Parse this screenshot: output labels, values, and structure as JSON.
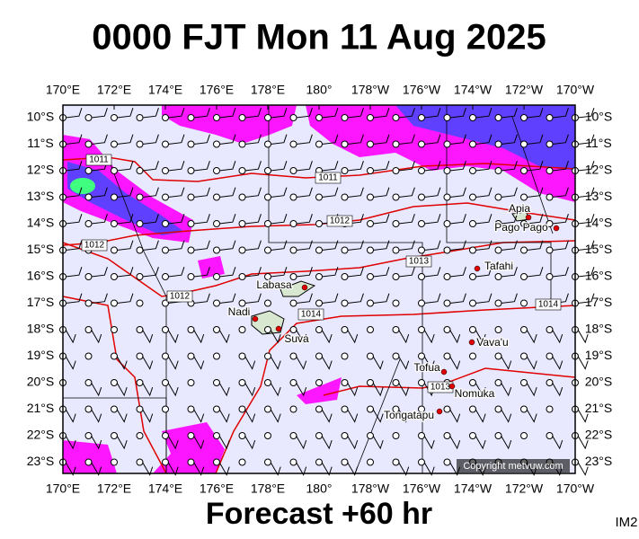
{
  "header": {
    "title": "0000 FJT Mon 11 Aug 2025"
  },
  "map": {
    "lon_labels": [
      "170°E",
      "172°E",
      "174°E",
      "176°E",
      "178°E",
      "180°",
      "178°W",
      "176°W",
      "174°W",
      "172°W",
      "170°W"
    ],
    "lat_labels": [
      "10°S",
      "11°S",
      "12°S",
      "13°S",
      "14°S",
      "15°S",
      "16°S",
      "17°S",
      "18°S",
      "19°S",
      "20°S",
      "21°S",
      "22°S",
      "23°S"
    ],
    "isobar_labels": [
      "1011",
      "1011",
      "1012",
      "1012",
      "1013",
      "1012",
      "1014",
      "1014",
      "1013"
    ],
    "places": [
      "Apia",
      "Pago Pago",
      "Tafahi",
      "Labasa",
      "Nadi",
      "Suva",
      "Vava'u",
      "Tofua",
      "Nomuka",
      "Tongatapu"
    ],
    "copyright": "Copyright metvuw.com"
  },
  "footer": {
    "forecast": "Forecast +60 hr",
    "code": "IM2"
  }
}
